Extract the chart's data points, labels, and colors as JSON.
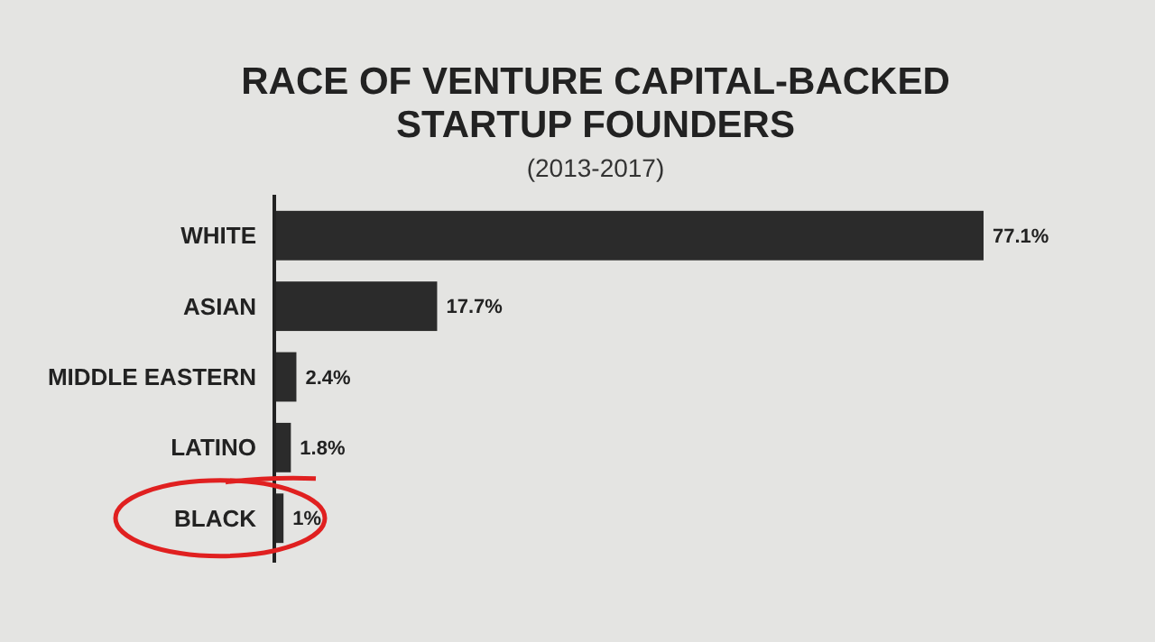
{
  "chart_data": {
    "type": "bar",
    "orientation": "horizontal",
    "title": "RACE OF VENTURE CAPITAL-BACKED STARTUP FOUNDERS",
    "subtitle": "(2013-2017)",
    "categories": [
      "WHITE",
      "ASIAN",
      "MIDDLE EASTERN",
      "LATINO",
      "BLACK"
    ],
    "values": [
      77.1,
      17.7,
      2.4,
      1.8,
      1
    ],
    "value_labels": [
      "77.1%",
      "17.7%",
      "2.4%",
      "1.8%",
      "1%"
    ],
    "color": "#2b2b2b"
  }
}
